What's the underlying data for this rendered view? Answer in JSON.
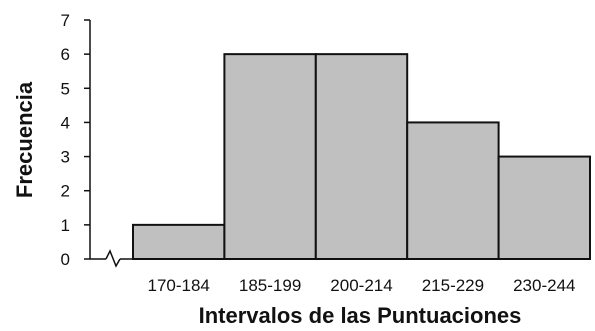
{
  "chart_data": {
    "type": "bar",
    "categories": [
      "170-184",
      "185-199",
      "200-214",
      "215-229",
      "230-244"
    ],
    "values": [
      1,
      6,
      6,
      4,
      3
    ],
    "xlabel": "Intervalos de las Puntuaciones",
    "ylabel": "Frecuencia",
    "ylim": [
      0,
      7
    ],
    "yticks": [
      0,
      1,
      2,
      3,
      4,
      5,
      6,
      7
    ],
    "grid": false,
    "legend": "none",
    "bar_color": "#c0c0c0",
    "edge_color": "#111111"
  }
}
